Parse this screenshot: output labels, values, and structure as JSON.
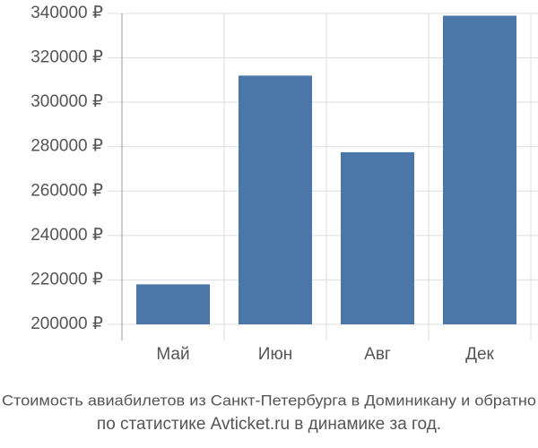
{
  "chart_data": {
    "type": "bar",
    "caption": [
      "Стоимость авиабилетов из Санкт-Петербурга в Доминикану и обратно",
      "по статистике Avticket.ru в динамике за год."
    ],
    "categories": [
      "Май",
      "Июн",
      "Авг",
      "Дек"
    ],
    "values": [
      218000,
      312000,
      277500,
      339000
    ],
    "color": "#4a76a8",
    "ylim": [
      200000,
      340000
    ],
    "yticks": [
      {
        "value": 200000,
        "label": "200000 ₽"
      },
      {
        "value": 220000,
        "label": "220000 ₽"
      },
      {
        "value": 240000,
        "label": "240000 ₽"
      },
      {
        "value": 260000,
        "label": "260000 ₽"
      },
      {
        "value": 280000,
        "label": "280000 ₽"
      },
      {
        "value": 300000,
        "label": "300000 ₽"
      },
      {
        "value": 320000,
        "label": "320000 ₽"
      },
      {
        "value": 340000,
        "label": "340000 ₽"
      }
    ],
    "grid": true
  }
}
